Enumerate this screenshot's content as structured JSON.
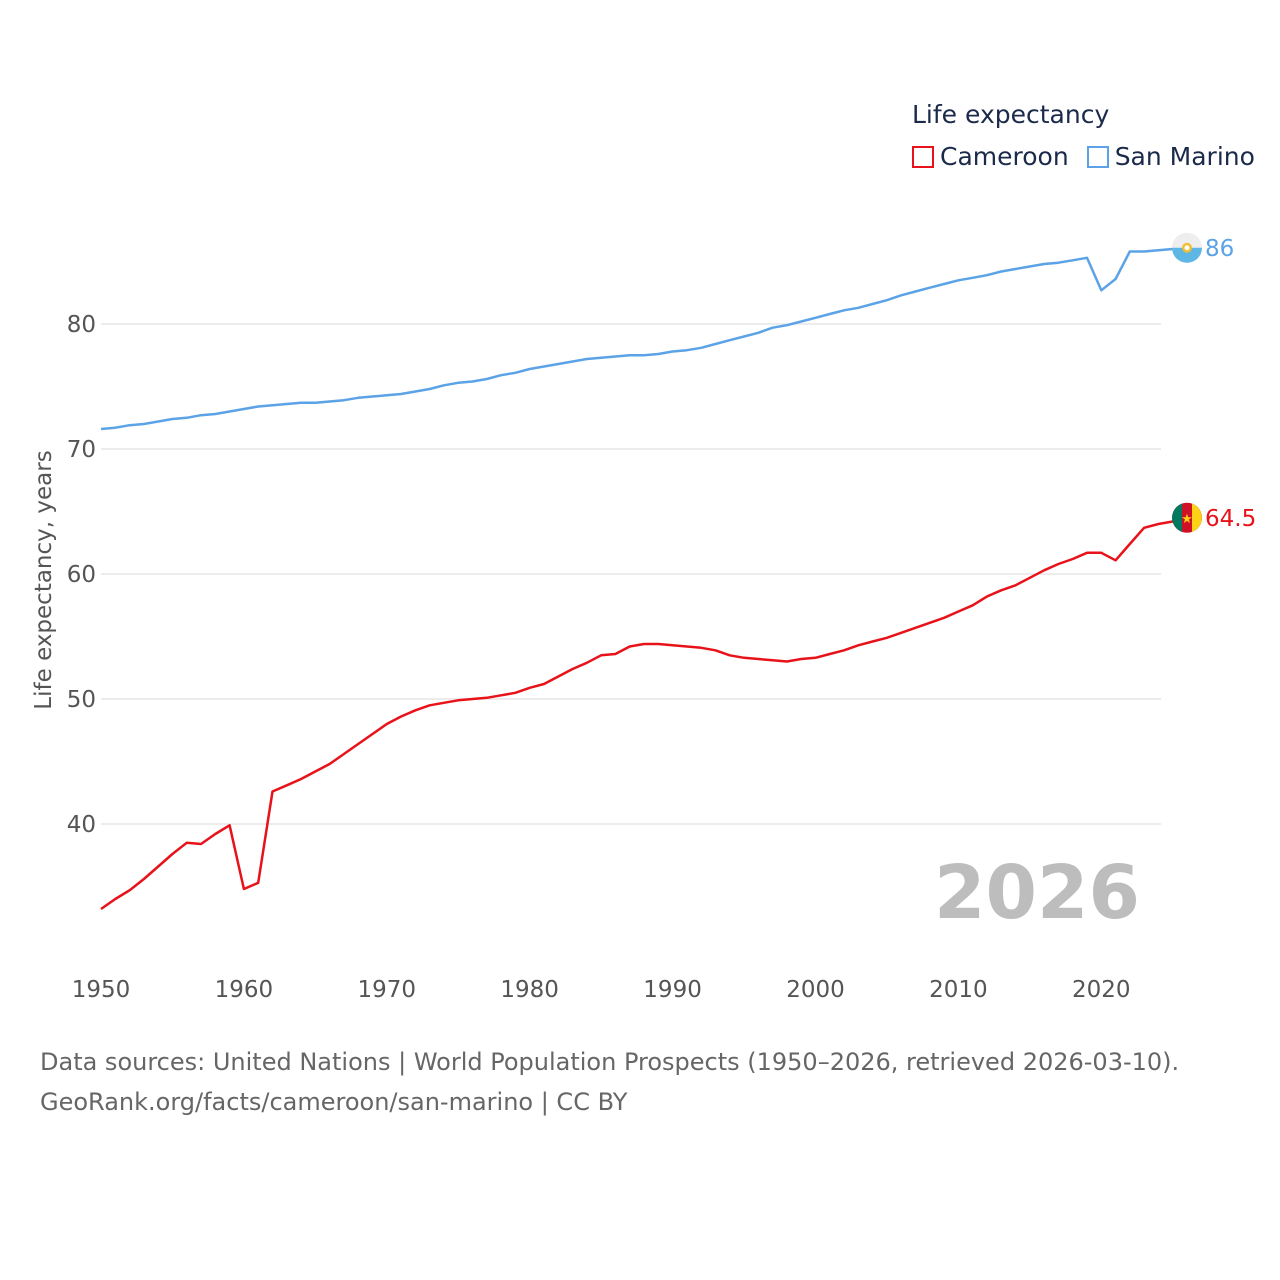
{
  "legend": {
    "title": "Life expectancy",
    "items": [
      {
        "label": "Cameroon",
        "color": "#e8121a"
      },
      {
        "label": "San Marino",
        "color": "#5ba3e6"
      }
    ]
  },
  "year_label": "2026",
  "footer": {
    "line1": "Data sources: United Nations | World Population Prospects (1950–2026, retrieved 2026-03-10).",
    "line2": "GeoRank.org/facts/cameroon/san-marino | CC BY"
  },
  "chart_data": {
    "type": "line",
    "ylabel": "Life expectancy, years",
    "xlabel": "",
    "xlim": [
      1950,
      2026
    ],
    "ylim": [
      30,
      90
    ],
    "xticks": [
      1950,
      1960,
      1970,
      1980,
      1990,
      2000,
      2010,
      2020
    ],
    "yticks": [
      40,
      50,
      60,
      70,
      80
    ],
    "grid": true,
    "series": [
      {
        "name": "San Marino",
        "color": "#5ba3e6",
        "end_label": "86",
        "flag_icon": "san-marino-flag-icon",
        "x": [
          1950,
          1951,
          1952,
          1953,
          1954,
          1955,
          1956,
          1957,
          1958,
          1959,
          1960,
          1961,
          1962,
          1963,
          1964,
          1965,
          1966,
          1967,
          1968,
          1969,
          1970,
          1971,
          1972,
          1973,
          1974,
          1975,
          1976,
          1977,
          1978,
          1979,
          1980,
          1981,
          1982,
          1983,
          1984,
          1985,
          1986,
          1987,
          1988,
          1989,
          1990,
          1991,
          1992,
          1993,
          1994,
          1995,
          1996,
          1997,
          1998,
          1999,
          2000,
          2001,
          2002,
          2003,
          2004,
          2005,
          2006,
          2007,
          2008,
          2009,
          2010,
          2011,
          2012,
          2013,
          2014,
          2015,
          2016,
          2017,
          2018,
          2019,
          2020,
          2021,
          2022,
          2023,
          2024,
          2025,
          2026
        ],
        "y": [
          71.6,
          71.7,
          71.9,
          72.0,
          72.2,
          72.4,
          72.5,
          72.7,
          72.8,
          73.0,
          73.2,
          73.4,
          73.5,
          73.6,
          73.7,
          73.7,
          73.8,
          73.9,
          74.1,
          74.2,
          74.3,
          74.4,
          74.6,
          74.8,
          75.1,
          75.3,
          75.4,
          75.6,
          75.9,
          76.1,
          76.4,
          76.6,
          76.8,
          77.0,
          77.2,
          77.3,
          77.4,
          77.5,
          77.5,
          77.6,
          77.8,
          77.9,
          78.1,
          78.4,
          78.7,
          79.0,
          79.3,
          79.7,
          79.9,
          80.2,
          80.5,
          80.8,
          81.1,
          81.3,
          81.6,
          81.9,
          82.3,
          82.6,
          82.9,
          83.2,
          83.5,
          83.7,
          83.9,
          84.2,
          84.4,
          84.6,
          84.8,
          84.9,
          85.1,
          85.3,
          82.7,
          83.6,
          85.8,
          85.8,
          85.9,
          86.0,
          86.1
        ]
      },
      {
        "name": "Cameroon",
        "color": "#e8121a",
        "end_label": "64.5",
        "flag_icon": "cameroon-flag-icon",
        "x": [
          1950,
          1951,
          1952,
          1953,
          1954,
          1955,
          1956,
          1957,
          1958,
          1959,
          1960,
          1961,
          1962,
          1963,
          1964,
          1965,
          1966,
          1967,
          1968,
          1969,
          1970,
          1971,
          1972,
          1973,
          1974,
          1975,
          1976,
          1977,
          1978,
          1979,
          1980,
          1981,
          1982,
          1983,
          1984,
          1985,
          1986,
          1987,
          1988,
          1989,
          1990,
          1991,
          1992,
          1993,
          1994,
          1995,
          1996,
          1997,
          1998,
          1999,
          2000,
          2001,
          2002,
          2003,
          2004,
          2005,
          2006,
          2007,
          2008,
          2009,
          2010,
          2011,
          2012,
          2013,
          2014,
          2015,
          2016,
          2017,
          2018,
          2019,
          2020,
          2021,
          2022,
          2023,
          2024,
          2025,
          2026
        ],
        "y": [
          33.2,
          34.0,
          34.7,
          35.6,
          36.6,
          37.6,
          38.5,
          38.4,
          39.2,
          39.9,
          34.8,
          35.3,
          42.6,
          43.1,
          43.6,
          44.2,
          44.8,
          45.6,
          46.4,
          47.2,
          48.0,
          48.6,
          49.1,
          49.5,
          49.7,
          49.9,
          50.0,
          50.1,
          50.3,
          50.5,
          50.9,
          51.2,
          51.8,
          52.4,
          52.9,
          53.5,
          53.6,
          54.2,
          54.4,
          54.4,
          54.3,
          54.2,
          54.1,
          53.9,
          53.5,
          53.3,
          53.2,
          53.1,
          53.0,
          53.2,
          53.3,
          53.6,
          53.9,
          54.3,
          54.6,
          54.9,
          55.3,
          55.7,
          56.1,
          56.5,
          57.0,
          57.5,
          58.2,
          58.7,
          59.1,
          59.7,
          60.3,
          60.8,
          61.2,
          61.7,
          61.7,
          61.1,
          62.4,
          63.7,
          64.0,
          64.2,
          64.5
        ]
      }
    ]
  }
}
